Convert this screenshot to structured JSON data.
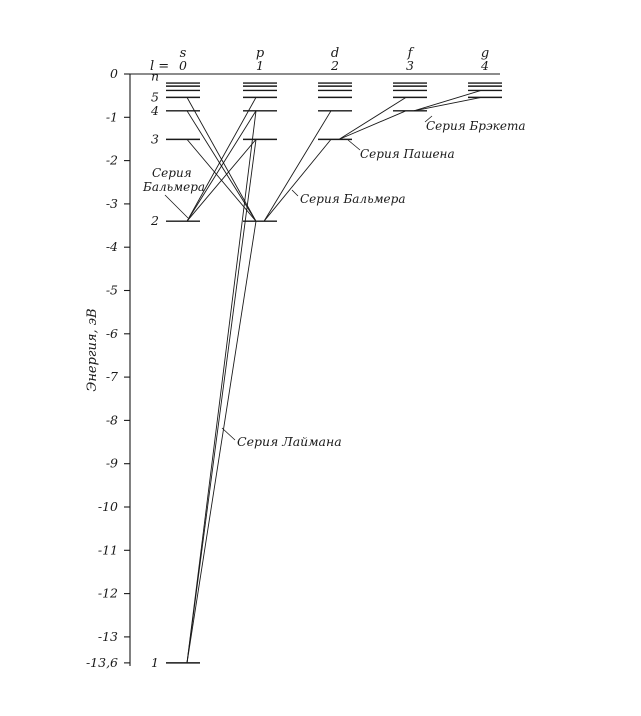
{
  "axis": {
    "title": "Энергия, эВ",
    "tick_values": [
      0,
      -1,
      -2,
      -3,
      -4,
      -5,
      -6,
      -7,
      -8,
      -9,
      -10,
      -11,
      -12,
      -13
    ],
    "tick_labels": [
      "0",
      "-1",
      "-2",
      "-3",
      "-4",
      "-5",
      "-6",
      "-7",
      "-8",
      "-9",
      "-10",
      "-11",
      "-12",
      "-13"
    ],
    "bottom_value": -13.6,
    "bottom_label": "-13,6"
  },
  "l_prefix": "l =",
  "columns": [
    {
      "letter": "s",
      "l": "0"
    },
    {
      "letter": "p",
      "l": "1"
    },
    {
      "letter": "d",
      "l": "2"
    },
    {
      "letter": "f",
      "l": "3"
    },
    {
      "letter": "g",
      "l": "4"
    }
  ],
  "n_labels": [
    {
      "text": "n",
      "n": "inf"
    },
    {
      "text": "5",
      "n": 5
    },
    {
      "text": "4",
      "n": 4
    },
    {
      "text": "3",
      "n": 3
    },
    {
      "text": "2",
      "n": 2
    },
    {
      "text": "1",
      "n": 1
    }
  ],
  "levels": [
    {
      "n": 1,
      "energy": -13.6
    },
    {
      "n": 2,
      "energy": -3.4
    },
    {
      "n": 3,
      "energy": -1.51
    },
    {
      "n": 4,
      "energy": -0.85
    },
    {
      "n": 5,
      "energy": -0.54
    },
    {
      "n": 6,
      "energy": -0.38
    },
    {
      "n": 7,
      "energy": -0.28
    },
    {
      "n": 8,
      "energy": -0.21
    }
  ],
  "series": {
    "lyman": "Серия Лаймана",
    "balmer_line1": "Серия",
    "balmer_line2": "Бальмера",
    "balmer_right": "Серия Бальмера",
    "paschen": "Серия Пашена",
    "brackett": "Серия Брэкета"
  },
  "transitions": [
    {
      "series": "lyman",
      "from_l": 1,
      "from_n": 2,
      "to_l": 0,
      "to_n": 1
    },
    {
      "series": "lyman",
      "from_l": 1,
      "from_n": 3,
      "to_l": 0,
      "to_n": 1
    },
    {
      "series": "lyman",
      "from_l": 1,
      "from_n": 4,
      "to_l": 0,
      "to_n": 1
    },
    {
      "series": "balmer",
      "from_l": 1,
      "from_n": 3,
      "to_l": 0,
      "to_n": 2
    },
    {
      "series": "balmer",
      "from_l": 1,
      "from_n": 4,
      "to_l": 0,
      "to_n": 2
    },
    {
      "series": "balmer",
      "from_l": 1,
      "from_n": 5,
      "to_l": 0,
      "to_n": 2
    },
    {
      "series": "balmer",
      "from_l": 0,
      "from_n": 3,
      "to_l": 1,
      "to_n": 2
    },
    {
      "series": "balmer",
      "from_l": 0,
      "from_n": 4,
      "to_l": 1,
      "to_n": 2
    },
    {
      "series": "balmer",
      "from_l": 0,
      "from_n": 5,
      "to_l": 1,
      "to_n": 2
    },
    {
      "series": "balmer",
      "from_l": 2,
      "from_n": 3,
      "to_l": 1,
      "to_n": 2
    },
    {
      "series": "balmer",
      "from_l": 2,
      "from_n": 4,
      "to_l": 1,
      "to_n": 2
    },
    {
      "series": "paschen",
      "from_l": 3,
      "from_n": 4,
      "to_l": 2,
      "to_n": 3
    },
    {
      "series": "paschen",
      "from_l": 3,
      "from_n": 5,
      "to_l": 2,
      "to_n": 3
    },
    {
      "series": "brackett",
      "from_l": 4,
      "from_n": 5,
      "to_l": 3,
      "to_n": 4
    },
    {
      "series": "brackett",
      "from_l": 4,
      "from_n": 6,
      "to_l": 3,
      "to_n": 4
    }
  ]
}
